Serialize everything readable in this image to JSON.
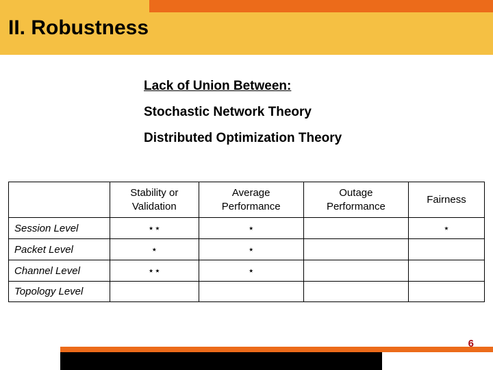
{
  "header": {
    "band_color": "#f5c043",
    "accent_color": "#ec6b1a",
    "title": "II. Robustness",
    "title_color": "#000000",
    "title_fontsize": 30
  },
  "content": {
    "lines": [
      {
        "text": "Lack of Union Between:",
        "underline": true
      },
      {
        "text": "Stochastic Network Theory",
        "underline": false
      },
      {
        "text": "Distributed Optimization Theory",
        "underline": false
      }
    ],
    "fontsize": 19,
    "color": "#000000"
  },
  "table": {
    "type": "table",
    "columns": [
      "",
      "Stability or Validation",
      "Average Performance",
      "Outage Performance",
      "Fairness"
    ],
    "rows": [
      {
        "label": "Session Level",
        "cells": [
          "⋆⋆",
          "⋆",
          "",
          "⋆"
        ]
      },
      {
        "label": "Packet Level",
        "cells": [
          "⋆",
          "⋆",
          "",
          ""
        ]
      },
      {
        "label": "Channel Level",
        "cells": [
          "⋆⋆",
          "⋆",
          "",
          ""
        ]
      },
      {
        "label": "Topology Level",
        "cells": [
          "",
          "",
          "",
          ""
        ]
      }
    ],
    "border_color": "#000000",
    "fontsize": 15,
    "background_color": "#ffffff"
  },
  "footer": {
    "page_number": "6",
    "page_number_color": "#aa0b12",
    "black_color": "#000000",
    "orange_color": "#ec6b1a"
  }
}
